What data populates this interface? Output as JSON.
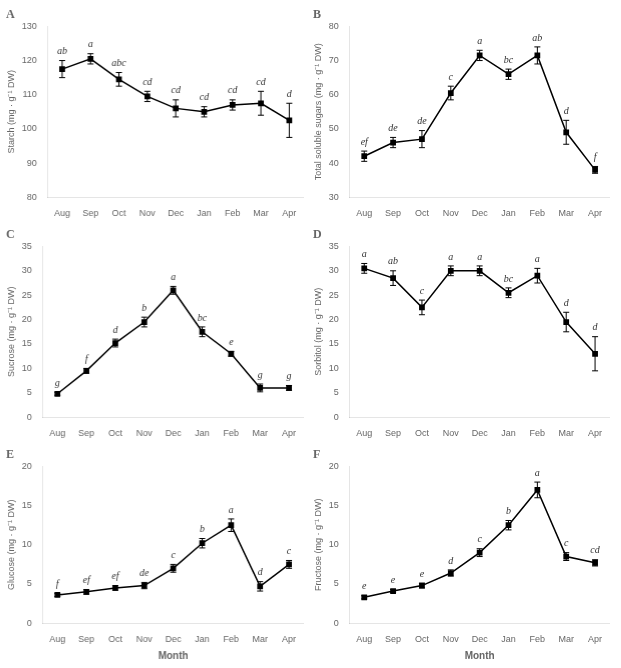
{
  "chart_data": [
    {
      "type": "line",
      "title": "A",
      "categories": [
        "Aug",
        "Sep",
        "Oct",
        "Nov",
        "Dec",
        "Jan",
        "Feb",
        "Mar",
        "Apr"
      ],
      "values": [
        117.5,
        120.5,
        114.5,
        109.5,
        106.0,
        105.0,
        107.0,
        107.5,
        102.5
      ],
      "errors": [
        2.5,
        1.5,
        2.0,
        1.5,
        2.5,
        1.5,
        1.5,
        3.5,
        5.0
      ],
      "annotations": [
        "ab",
        "a",
        "abc",
        "cd",
        "cd",
        "cd",
        "cd",
        "cd",
        "d"
      ],
      "ylabel": "Starch (mg · g⁻¹ DW)",
      "ylim": [
        80,
        130
      ],
      "yticks": [
        80,
        90,
        100,
        110,
        120,
        130
      ],
      "color": "black",
      "marker": "square",
      "line_style": "solid",
      "grid": false
    },
    {
      "type": "line",
      "title": "B",
      "categories": [
        "Aug",
        "Sep",
        "Oct",
        "Nov",
        "Dec",
        "Jan",
        "Feb",
        "Mar",
        "Apr"
      ],
      "values": [
        42.0,
        46.0,
        47.0,
        60.5,
        71.5,
        66.0,
        71.5,
        49.0,
        38.0
      ],
      "errors": [
        1.5,
        1.5,
        2.5,
        2.0,
        1.5,
        1.5,
        2.5,
        3.5,
        1.0
      ],
      "annotations": [
        "ef",
        "de",
        "de",
        "c",
        "a",
        "bc",
        "ab",
        "d",
        "f"
      ],
      "ylabel": "Total soluble sugars (mg · g⁻¹ DW)",
      "ylim": [
        30,
        80
      ],
      "yticks": [
        30,
        40,
        50,
        60,
        70,
        80
      ],
      "color": "black",
      "marker": "square",
      "line_style": "solid",
      "grid": false
    },
    {
      "type": "line",
      "title": "C",
      "categories": [
        "Aug",
        "Sep",
        "Oct",
        "Nov",
        "Dec",
        "Jan",
        "Feb",
        "Mar",
        "Apr"
      ],
      "values": [
        4.8,
        9.5,
        15.2,
        19.5,
        26.0,
        17.5,
        13.0,
        6.0,
        6.0
      ],
      "errors": [
        0.3,
        0.5,
        0.8,
        1.0,
        0.8,
        1.0,
        0.5,
        0.8,
        0.5
      ],
      "annotations": [
        "g",
        "f",
        "d",
        "b",
        "a",
        "bc",
        "e",
        "g",
        "g"
      ],
      "ylabel": "Sucrose (mg · g⁻¹ DW)",
      "ylim": [
        0,
        35
      ],
      "yticks": [
        0,
        5,
        10,
        15,
        20,
        25,
        30,
        35
      ],
      "color": "black",
      "marker": "square",
      "line_style": "solid",
      "grid": false
    },
    {
      "type": "line",
      "title": "D",
      "categories": [
        "Aug",
        "Sep",
        "Oct",
        "Nov",
        "Dec",
        "Jan",
        "Feb",
        "Mar",
        "Apr"
      ],
      "values": [
        30.5,
        28.5,
        22.5,
        30.0,
        30.0,
        25.5,
        29.0,
        19.5,
        13.0
      ],
      "errors": [
        1.0,
        1.5,
        1.5,
        1.0,
        1.0,
        1.0,
        1.5,
        2.0,
        3.5
      ],
      "annotations": [
        "a",
        "ab",
        "c",
        "a",
        "a",
        "bc",
        "a",
        "d",
        "d"
      ],
      "ylabel": "Sorbitol (mg · g⁻¹ DW)",
      "ylim": [
        0,
        35
      ],
      "yticks": [
        0,
        5,
        10,
        15,
        20,
        25,
        30,
        35
      ],
      "color": "black",
      "marker": "square",
      "line_style": "solid",
      "grid": false
    },
    {
      "type": "line",
      "title": "E",
      "categories": [
        "Aug",
        "Sep",
        "Oct",
        "Nov",
        "Dec",
        "Jan",
        "Feb",
        "Mar",
        "Apr"
      ],
      "values": [
        3.6,
        4.0,
        4.5,
        4.8,
        7.0,
        10.2,
        12.5,
        4.7,
        7.5
      ],
      "errors": [
        0.2,
        0.3,
        0.3,
        0.4,
        0.5,
        0.6,
        0.8,
        0.6,
        0.5
      ],
      "annotations": [
        "f",
        "ef",
        "ef",
        "de",
        "c",
        "b",
        "a",
        "d",
        "c"
      ],
      "ylabel": "Glucose (mg · g⁻¹ DW)",
      "xlabel": "Month",
      "ylim": [
        0,
        20
      ],
      "yticks": [
        0,
        5,
        10,
        15,
        20
      ],
      "color": "black",
      "marker": "square",
      "line_style": "solid",
      "grid": false
    },
    {
      "type": "line",
      "title": "F",
      "categories": [
        "Aug",
        "Sep",
        "Oct",
        "Nov",
        "Dec",
        "Jan",
        "Feb",
        "Mar",
        "Apr"
      ],
      "values": [
        3.3,
        4.1,
        4.8,
        6.4,
        9.0,
        12.5,
        17.0,
        8.5,
        7.7
      ],
      "errors": [
        0.2,
        0.2,
        0.3,
        0.4,
        0.5,
        0.6,
        1.0,
        0.5,
        0.4
      ],
      "annotations": [
        "e",
        "e",
        "e",
        "d",
        "c",
        "b",
        "a",
        "c",
        "cd"
      ],
      "ylabel": "Fructose (mg · g⁻¹ DW)",
      "xlabel": "Month",
      "ylim": [
        0,
        20
      ],
      "yticks": [
        0,
        5,
        10,
        15,
        20
      ],
      "color": "black",
      "marker": "square",
      "line_style": "solid",
      "grid": false
    }
  ]
}
